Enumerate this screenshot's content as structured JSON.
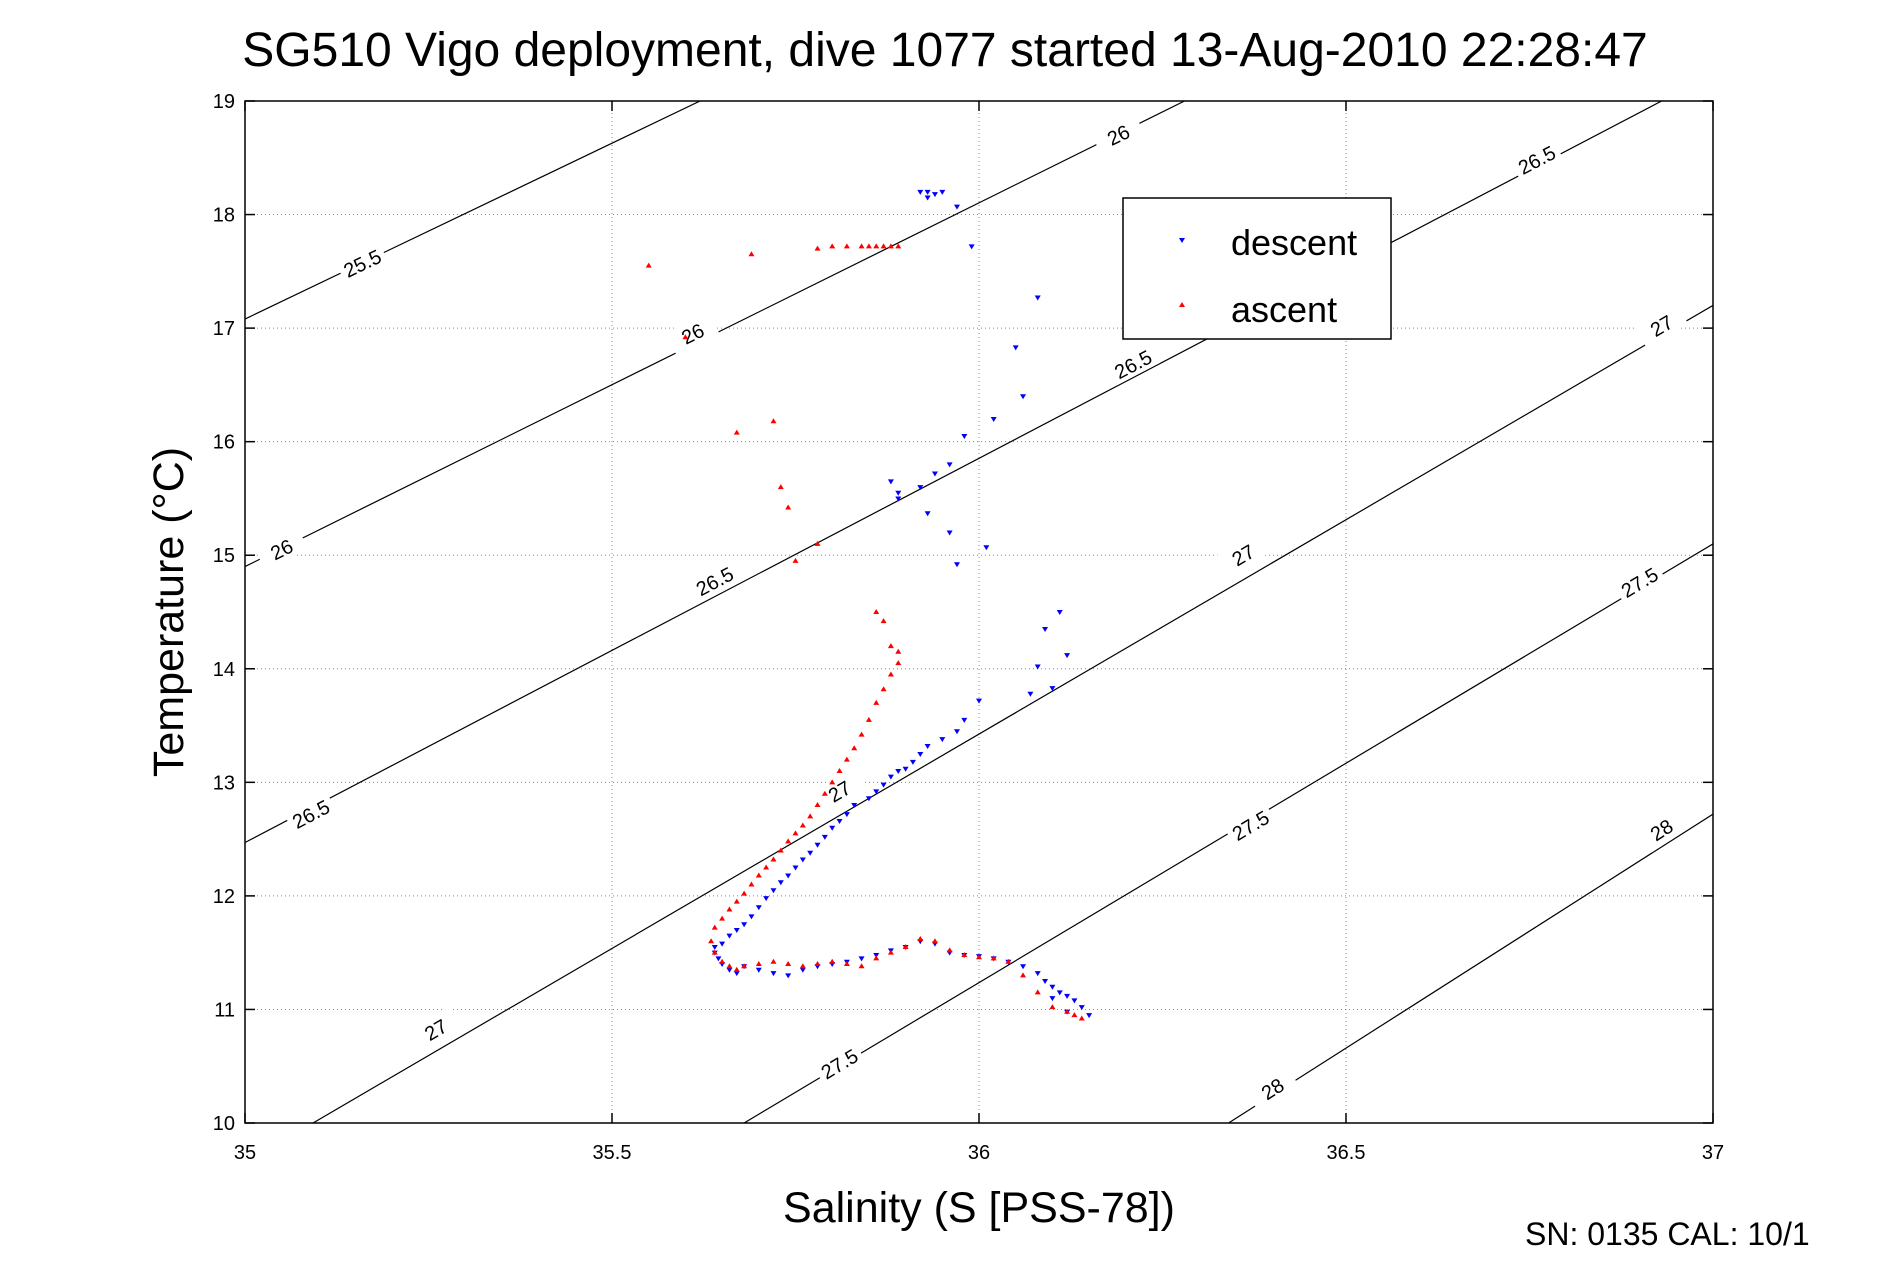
{
  "chart_data": {
    "type": "scatter",
    "title": "SG510 Vigo deployment, dive 1077 started 13-Aug-2010 22:28:47",
    "xlabel": "Salinity (S [PSS-78])",
    "ylabel": "Temperature (°C)",
    "xlim": [
      35,
      37
    ],
    "ylim": [
      10,
      19
    ],
    "x_ticks": [
      "35",
      "35.5",
      "36",
      "36.5",
      "37"
    ],
    "y_ticks": [
      "10",
      "11",
      "12",
      "13",
      "14",
      "15",
      "16",
      "17",
      "18",
      "19"
    ],
    "grid": true,
    "legend_position": "top-right",
    "footer": "SN: 0135  CAL: 10/1",
    "isopycnals": [
      {
        "sigma": 25.5,
        "points": [
          [
            35.0,
            17.08
          ],
          [
            35.62,
            19.0
          ]
        ],
        "labels": [
          [
            35.16,
            17.57,
            "25.5"
          ]
        ]
      },
      {
        "sigma": 26,
        "points": [
          [
            35.0,
            14.9
          ],
          [
            36.28,
            19.0
          ]
        ],
        "labels": [
          [
            35.05,
            15.05,
            "26"
          ],
          [
            35.61,
            16.95,
            "26"
          ],
          [
            36.19,
            18.7,
            "26"
          ]
        ]
      },
      {
        "sigma": 26.5,
        "points": [
          [
            35.0,
            12.47
          ],
          [
            36.93,
            19.0
          ]
        ],
        "labels": [
          [
            35.09,
            12.72,
            "26.5"
          ],
          [
            35.64,
            14.77,
            "26.5"
          ],
          [
            36.21,
            16.68,
            "26.5"
          ],
          [
            36.76,
            18.48,
            "26.5"
          ]
        ]
      },
      {
        "sigma": 27,
        "points": [
          [
            35.0,
            9.65
          ],
          [
            37.0,
            17.2
          ]
        ],
        "labels": [
          [
            35.26,
            10.82,
            "27"
          ],
          [
            35.81,
            12.92,
            "27"
          ],
          [
            36.36,
            15.0,
            "27"
          ],
          [
            36.93,
            17.02,
            "27"
          ]
        ]
      },
      {
        "sigma": 27.5,
        "points": [
          [
            35.68,
            10.0
          ],
          [
            37.0,
            15.1
          ]
        ],
        "labels": [
          [
            35.81,
            10.52,
            "27.5"
          ],
          [
            36.37,
            12.62,
            "27.5"
          ],
          [
            36.9,
            14.76,
            "27.5"
          ]
        ]
      },
      {
        "sigma": 28,
        "points": [
          [
            36.34,
            10.0
          ],
          [
            37.0,
            12.72
          ]
        ],
        "labels": [
          [
            36.4,
            10.3,
            "28"
          ],
          [
            36.93,
            12.58,
            "28"
          ]
        ]
      }
    ],
    "series": [
      {
        "name": "descent",
        "color": "#0000ff",
        "marker": "triangle-down",
        "x": [
          35.92,
          35.93,
          35.94,
          35.95,
          35.93,
          35.97,
          35.99,
          36.08,
          36.05,
          36.06,
          36.02,
          35.98,
          35.96,
          35.94,
          35.92,
          35.89,
          35.88,
          35.89,
          35.93,
          35.96,
          35.97,
          36.01,
          36.09,
          36.11,
          36.08,
          36.12,
          36.1,
          36.07,
          36.0,
          35.98,
          35.97,
          35.95,
          35.93,
          35.92,
          35.91,
          35.9,
          35.89,
          35.88,
          35.87,
          35.86,
          35.85,
          35.83,
          35.82,
          35.81,
          35.8,
          35.79,
          35.78,
          35.77,
          35.76,
          35.75,
          35.74,
          35.73,
          35.72,
          35.71,
          35.7,
          35.69,
          35.68,
          35.67,
          35.66,
          35.65,
          35.64,
          35.64,
          35.645,
          35.65,
          35.66,
          35.67,
          35.68,
          35.7,
          35.72,
          35.74,
          35.76,
          35.78,
          35.8,
          35.82,
          35.84,
          35.86,
          35.88,
          35.9,
          35.92,
          35.94,
          35.96,
          35.98,
          36.0,
          36.02,
          36.04,
          36.06,
          36.08,
          36.09,
          36.1,
          36.11,
          36.12,
          36.13,
          36.14,
          36.15,
          36.12,
          36.1
        ],
        "y": [
          18.2,
          18.2,
          18.18,
          18.2,
          18.15,
          18.07,
          17.72,
          17.27,
          16.83,
          16.4,
          16.2,
          16.05,
          15.8,
          15.72,
          15.6,
          15.55,
          15.65,
          15.5,
          15.37,
          15.2,
          14.92,
          15.07,
          14.35,
          14.5,
          14.02,
          14.12,
          13.83,
          13.78,
          13.72,
          13.55,
          13.45,
          13.38,
          13.32,
          13.25,
          13.18,
          13.12,
          13.1,
          13.05,
          12.98,
          12.92,
          12.86,
          12.8,
          12.72,
          12.66,
          12.6,
          12.52,
          12.45,
          12.38,
          12.32,
          12.25,
          12.18,
          12.12,
          12.05,
          11.98,
          11.9,
          11.82,
          11.75,
          11.7,
          11.65,
          11.58,
          11.55,
          11.5,
          11.45,
          11.4,
          11.35,
          11.32,
          11.38,
          11.35,
          11.32,
          11.3,
          11.35,
          11.38,
          11.4,
          11.42,
          11.45,
          11.48,
          11.52,
          11.55,
          11.6,
          11.58,
          11.5,
          11.48,
          11.47,
          11.45,
          11.42,
          11.38,
          11.32,
          11.25,
          11.2,
          11.15,
          11.12,
          11.08,
          11.02,
          10.95,
          10.98,
          11.1
        ]
      },
      {
        "name": "ascent",
        "color": "#ff0000",
        "marker": "triangle-up",
        "x": [
          35.55,
          35.6,
          35.69,
          35.78,
          35.8,
          35.82,
          35.84,
          35.85,
          35.86,
          35.87,
          35.88,
          35.89,
          35.67,
          35.72,
          35.73,
          35.74,
          35.78,
          35.75,
          35.86,
          35.87,
          35.88,
          35.89,
          35.89,
          35.88,
          35.87,
          35.86,
          35.85,
          35.84,
          35.83,
          35.82,
          35.81,
          35.8,
          35.79,
          35.78,
          35.77,
          35.76,
          35.75,
          35.74,
          35.73,
          35.72,
          35.71,
          35.7,
          35.69,
          35.68,
          35.67,
          35.66,
          35.65,
          35.64,
          35.635,
          35.64,
          35.65,
          35.66,
          35.67,
          35.68,
          35.7,
          35.72,
          35.74,
          35.76,
          35.78,
          35.8,
          35.82,
          35.84,
          35.86,
          35.88,
          35.9,
          35.92,
          35.94,
          35.96,
          35.98,
          36.0,
          36.02,
          36.04,
          36.06,
          36.08,
          36.1,
          36.12,
          36.13,
          36.14
        ],
        "y": [
          17.55,
          16.92,
          17.65,
          17.7,
          17.72,
          17.72,
          17.72,
          17.72,
          17.72,
          17.72,
          17.72,
          17.72,
          16.08,
          16.18,
          15.6,
          15.42,
          15.1,
          14.95,
          14.5,
          14.42,
          14.2,
          14.15,
          14.05,
          13.95,
          13.82,
          13.7,
          13.55,
          13.42,
          13.3,
          13.2,
          13.1,
          13.0,
          12.9,
          12.8,
          12.7,
          12.62,
          12.55,
          12.48,
          12.4,
          12.32,
          12.25,
          12.18,
          12.1,
          12.02,
          11.95,
          11.88,
          11.8,
          11.72,
          11.6,
          11.5,
          11.42,
          11.38,
          11.35,
          11.38,
          11.4,
          11.42,
          11.4,
          11.38,
          11.4,
          11.42,
          11.4,
          11.38,
          11.45,
          11.5,
          11.55,
          11.62,
          11.6,
          11.52,
          11.48,
          11.46,
          11.45,
          11.42,
          11.3,
          11.15,
          11.02,
          10.98,
          10.95,
          10.92
        ]
      }
    ]
  }
}
